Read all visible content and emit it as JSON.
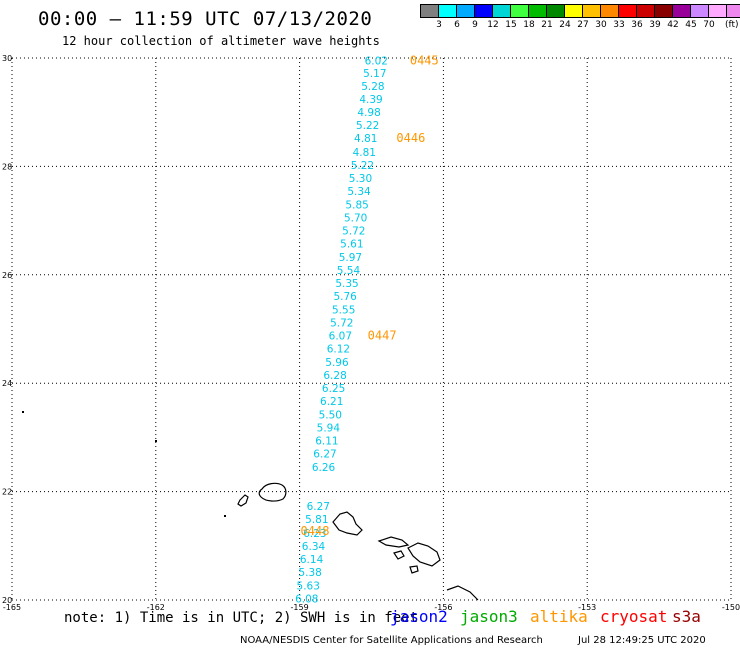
{
  "title": "00:00 – 11:59 UTC 07/13/2020",
  "subtitle": "12 hour collection of altimeter wave heights",
  "legend": {
    "unit": "(ft)",
    "colors": [
      "#808080",
      "#00ffff",
      "#00aaff",
      "#0000ff",
      "#00d5d5",
      "#40ff40",
      "#00bb00",
      "#008800",
      "#ffff00",
      "#ffc000",
      "#ff8800",
      "#ff0000",
      "#cc0000",
      "#880000",
      "#990099",
      "#cc88ff",
      "#ffaaff",
      "#ee88ee",
      "#000000"
    ],
    "labels": [
      "3",
      "6",
      "9",
      "12",
      "15",
      "18",
      "21",
      "24",
      "27",
      "30",
      "33",
      "36",
      "39",
      "42",
      "45",
      "70"
    ]
  },
  "axes": {
    "lon_range": [
      -165,
      -150
    ],
    "lat_range": [
      20,
      30
    ],
    "x_tick_labels": [
      "-165",
      "-162",
      "-159",
      "-156",
      "-153",
      "-150"
    ],
    "y_tick_labels": [
      "30",
      "28",
      "26",
      "24",
      "22",
      "20"
    ],
    "x_ticks": [
      -165,
      -162,
      -159,
      -156,
      -153,
      -150
    ],
    "y_ticks": [
      30,
      28,
      26,
      24,
      22,
      20
    ],
    "grid": "dotted"
  },
  "swh_values": [
    {
      "lat": 29.95,
      "lon": -157.4,
      "value": "6.02"
    },
    {
      "lat": 29.72,
      "lon": -157.43,
      "value": "5.17"
    },
    {
      "lat": 29.48,
      "lon": -157.47,
      "value": "5.28"
    },
    {
      "lat": 29.24,
      "lon": -157.51,
      "value": "4.39"
    },
    {
      "lat": 29.0,
      "lon": -157.55,
      "value": "4.98"
    },
    {
      "lat": 28.76,
      "lon": -157.58,
      "value": "5.22"
    },
    {
      "lat": 28.52,
      "lon": -157.62,
      "value": "4.81"
    },
    {
      "lat": 28.27,
      "lon": -157.65,
      "value": "4.81"
    },
    {
      "lat": 28.03,
      "lon": -157.69,
      "value": "5.22"
    },
    {
      "lat": 27.79,
      "lon": -157.73,
      "value": "5.30"
    },
    {
      "lat": 27.55,
      "lon": -157.76,
      "value": "5.34"
    },
    {
      "lat": 27.3,
      "lon": -157.8,
      "value": "5.85"
    },
    {
      "lat": 27.06,
      "lon": -157.83,
      "value": "5.70"
    },
    {
      "lat": 26.82,
      "lon": -157.87,
      "value": "5.72"
    },
    {
      "lat": 26.58,
      "lon": -157.91,
      "value": "5.61"
    },
    {
      "lat": 26.33,
      "lon": -157.94,
      "value": "5.97"
    },
    {
      "lat": 26.09,
      "lon": -157.98,
      "value": "5.54"
    },
    {
      "lat": 25.85,
      "lon": -158.01,
      "value": "5.35"
    },
    {
      "lat": 25.61,
      "lon": -158.05,
      "value": "5.76"
    },
    {
      "lat": 25.36,
      "lon": -158.08,
      "value": "5.55"
    },
    {
      "lat": 25.12,
      "lon": -158.12,
      "value": "5.72"
    },
    {
      "lat": 24.88,
      "lon": -158.15,
      "value": "6.07"
    },
    {
      "lat": 24.64,
      "lon": -158.19,
      "value": "6.12"
    },
    {
      "lat": 24.39,
      "lon": -158.22,
      "value": "5.96"
    },
    {
      "lat": 24.15,
      "lon": -158.26,
      "value": "6.28"
    },
    {
      "lat": 23.91,
      "lon": -158.29,
      "value": "6.25"
    },
    {
      "lat": 23.67,
      "lon": -158.33,
      "value": "6.21"
    },
    {
      "lat": 23.42,
      "lon": -158.36,
      "value": "5.50"
    },
    {
      "lat": 23.18,
      "lon": -158.4,
      "value": "5.94"
    },
    {
      "lat": 22.94,
      "lon": -158.43,
      "value": "6.11"
    },
    {
      "lat": 22.7,
      "lon": -158.47,
      "value": "6.27"
    },
    {
      "lat": 22.45,
      "lon": -158.5,
      "value": "6.26"
    },
    {
      "lat": 21.73,
      "lon": -158.61,
      "value": "6.27"
    },
    {
      "lat": 21.49,
      "lon": -158.64,
      "value": "5.81"
    },
    {
      "lat": 21.24,
      "lon": -158.68,
      "value": "6.23"
    },
    {
      "lat": 21.0,
      "lon": -158.71,
      "value": "6.34"
    },
    {
      "lat": 20.76,
      "lon": -158.75,
      "value": "6.14"
    },
    {
      "lat": 20.52,
      "lon": -158.78,
      "value": "5.38"
    },
    {
      "lat": 20.27,
      "lon": -158.82,
      "value": "5.63"
    },
    {
      "lat": 20.03,
      "lon": -158.85,
      "value": "6.08"
    }
  ],
  "pass_labels": [
    {
      "lat": 29.95,
      "lon": -156.7,
      "text": "0445"
    },
    {
      "lat": 28.52,
      "lon": -156.98,
      "text": "0446"
    },
    {
      "lat": 24.88,
      "lon": -157.58,
      "text": "0447"
    },
    {
      "lat": 21.27,
      "lon": -158.98,
      "text": "0448"
    }
  ],
  "footer": {
    "note": "note: 1) Time is in UTC; 2) SWH is in feet",
    "missions": [
      {
        "name": "jason2",
        "color": "#0000ff"
      },
      {
        "name": "jason3",
        "color": "#00aa00"
      },
      {
        "name": "altika",
        "color": "#ff9600"
      },
      {
        "name": "cryosat",
        "color": "#ff0000"
      },
      {
        "name": "s3a",
        "color": "#990000"
      }
    ],
    "credit": "NOAA/NESDIS Center for Satellite Applications and Research",
    "timestamp": "Jul 28 12:49:25 UTC 2020"
  }
}
